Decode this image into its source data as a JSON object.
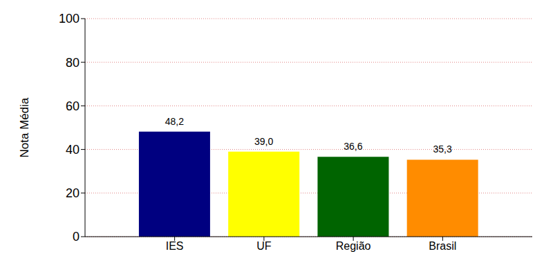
{
  "chart_data": {
    "type": "bar",
    "y_label": "Nota Média",
    "categories": [
      "IES",
      "UF",
      "Região",
      "Brasil"
    ],
    "values": [
      48.2,
      39.0,
      36.6,
      35.3
    ],
    "value_labels": [
      "48,2",
      "39,0",
      "36,6",
      "35,3"
    ],
    "colors": [
      "#000080",
      "#ffff00",
      "#006400",
      "#ff8c00"
    ],
    "ylim": [
      0,
      100
    ],
    "yticks": [
      0,
      20,
      40,
      60,
      80,
      100
    ],
    "grid": true,
    "data_labels": true
  }
}
